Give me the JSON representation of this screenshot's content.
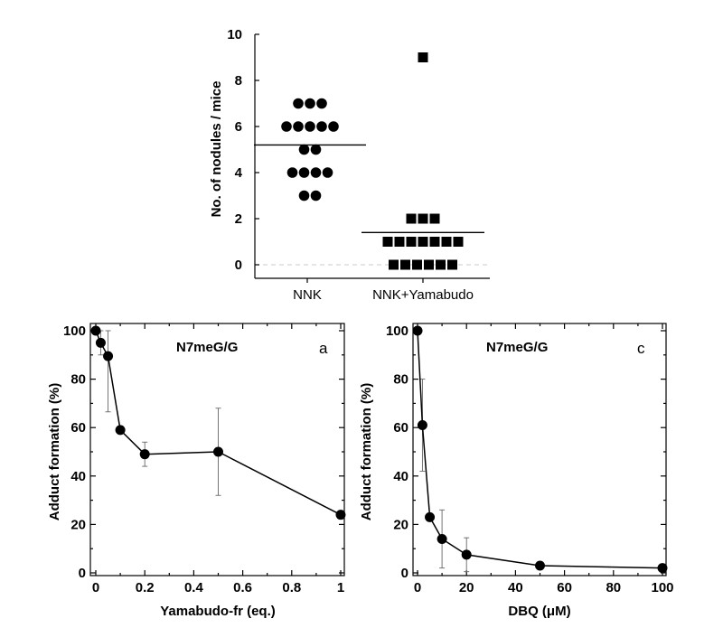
{
  "chart_data": [
    {
      "type": "scatter",
      "ylabel": "No. of nodules / mice",
      "ylim": [
        0,
        10
      ],
      "yticks": [
        "0",
        "2",
        "4",
        "6",
        "8",
        "10"
      ],
      "categories": [
        "NNK",
        "NNK+Yamabudo"
      ],
      "series": [
        {
          "marker": "circle",
          "category": "NNK",
          "points": [
            {
              "y": 7,
              "k": 0
            },
            {
              "y": 7,
              "k": 1
            },
            {
              "y": 7,
              "k": 2
            },
            {
              "y": 6,
              "k": 0
            },
            {
              "y": 6,
              "k": 1
            },
            {
              "y": 6,
              "k": 2
            },
            {
              "y": 6,
              "k": 3
            },
            {
              "y": 6,
              "k": 4
            },
            {
              "y": 5,
              "k": 0
            },
            {
              "y": 5,
              "k": 1
            },
            {
              "y": 4,
              "k": 0
            },
            {
              "y": 4,
              "k": 1
            },
            {
              "y": 4,
              "k": 2
            },
            {
              "y": 4,
              "k": 3
            },
            {
              "y": 3,
              "k": 0
            },
            {
              "y": 3,
              "k": 1
            }
          ],
          "mean": 5.2
        },
        {
          "marker": "square",
          "category": "NNK+Yamabudo",
          "points": [
            {
              "y": 9,
              "k": 0
            },
            {
              "y": 2,
              "k": 0
            },
            {
              "y": 2,
              "k": 1
            },
            {
              "y": 2,
              "k": 2
            },
            {
              "y": 1,
              "k": 0
            },
            {
              "y": 1,
              "k": 1
            },
            {
              "y": 1,
              "k": 2
            },
            {
              "y": 1,
              "k": 3
            },
            {
              "y": 1,
              "k": 4
            },
            {
              "y": 1,
              "k": 5
            },
            {
              "y": 1,
              "k": 6
            },
            {
              "y": 0,
              "k": 0
            },
            {
              "y": 0,
              "k": 1
            },
            {
              "y": 0,
              "k": 2
            },
            {
              "y": 0,
              "k": 3
            },
            {
              "y": 0,
              "k": 4
            },
            {
              "y": 0,
              "k": 5
            }
          ],
          "mean": 1.4
        }
      ]
    },
    {
      "type": "line",
      "annotation": "N7meG/G",
      "panel_letter": "a",
      "xlabel": "Yamabudo-fr (eq.)",
      "ylabel": "Adduct formation (%)",
      "xlim": [
        0,
        1
      ],
      "ylim": [
        0,
        100
      ],
      "xticks": [
        "0",
        "0.2",
        "0.4",
        "0.6",
        "0.8",
        "1"
      ],
      "yticks": [
        "0",
        "20",
        "40",
        "60",
        "80",
        "100"
      ],
      "x": [
        0,
        0.02,
        0.05,
        0.1,
        0.2,
        0.5,
        1.0
      ],
      "y": [
        100,
        95,
        89.5,
        59,
        49,
        50,
        24
      ],
      "err": [
        0,
        5,
        23,
        0,
        5,
        18,
        0
      ]
    },
    {
      "type": "line",
      "annotation": "N7meG/G",
      "panel_letter": "c",
      "xlabel": "DBQ  (μM)",
      "ylabel": "Adduct formation (%)",
      "xlim": [
        0,
        100
      ],
      "ylim": [
        0,
        100
      ],
      "xticks": [
        "0",
        "20",
        "40",
        "60",
        "80",
        "100"
      ],
      "yticks": [
        "0",
        "20",
        "40",
        "60",
        "80",
        "100"
      ],
      "x": [
        0,
        2,
        5,
        10,
        20,
        50,
        100
      ],
      "y": [
        100,
        61,
        23,
        14,
        7.5,
        3,
        2
      ],
      "err": [
        0,
        19,
        0,
        12,
        7,
        0,
        0
      ]
    }
  ]
}
